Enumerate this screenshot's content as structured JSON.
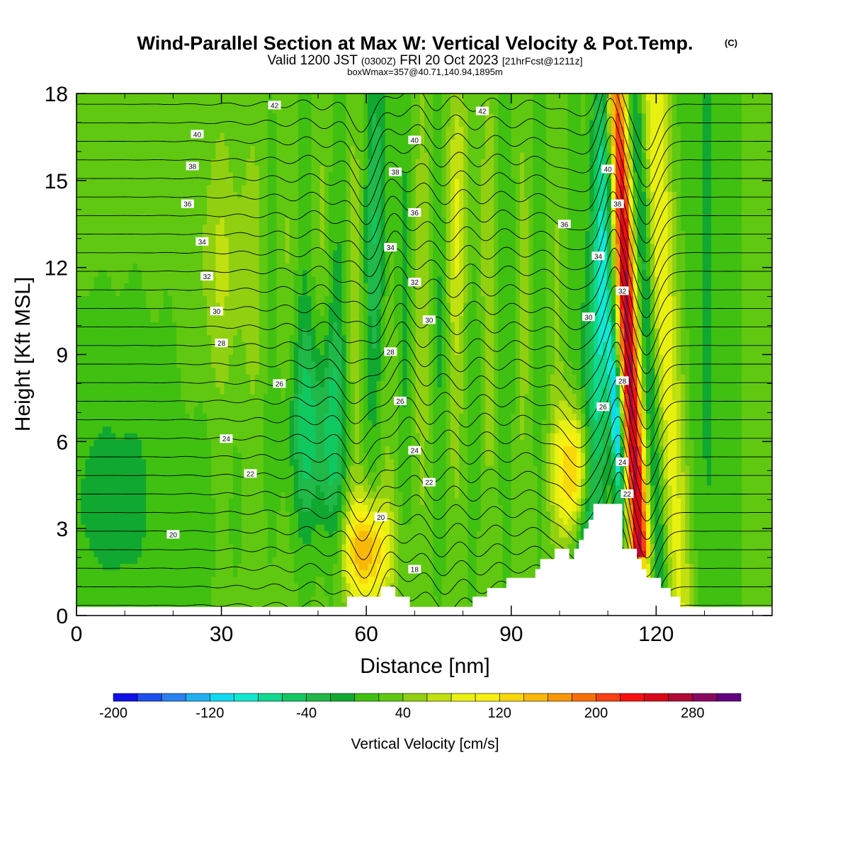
{
  "title": {
    "main": "Wind-Parallel Section at Max W: Vertical Velocity & Pot.Temp.",
    "copyright": "(C)",
    "valid_prefix": "Valid 1200 JST",
    "valid_utc": "(0300Z)",
    "valid_date": "FRI 20 Oct 2023",
    "forecast": "[21hrFcst@1211z]",
    "box": "boxWmax=357@40.71,140.94,1895m"
  },
  "chart_data": {
    "type": "heatmap",
    "xlabel": "Distance [nm]",
    "ylabel": "Height [Kft MSL]",
    "xlim": [
      0,
      144
    ],
    "ylim": [
      0,
      18
    ],
    "x_ticks": [
      "0",
      "30",
      "60",
      "90",
      "120"
    ],
    "y_ticks": [
      "0",
      "3",
      "6",
      "9",
      "12",
      "15",
      "18"
    ],
    "colorbar": {
      "label": "Vertical Velocity [cm/s]",
      "tick_labels": [
        "-200",
        "-120",
        "-40",
        "40",
        "120",
        "200",
        "280"
      ],
      "colors": [
        "#1010e8",
        "#1e50f0",
        "#2a80f0",
        "#20b0f0",
        "#10d8f0",
        "#10e8d0",
        "#10d890",
        "#10c860",
        "#20b848",
        "#10a830",
        "#40c010",
        "#60c810",
        "#90d010",
        "#c0e010",
        "#e8f010",
        "#f8f010",
        "#f8d808",
        "#f8b808",
        "#f89808",
        "#f87008",
        "#f84010",
        "#f81010",
        "#d80818",
        "#b00838",
        "#880860",
        "#600080"
      ],
      "boundaries": [
        -200,
        -180,
        -160,
        -140,
        -120,
        -100,
        -80,
        -60,
        -40,
        -20,
        0,
        20,
        40,
        60,
        80,
        100,
        120,
        140,
        160,
        180,
        200,
        220,
        240,
        260,
        280,
        300,
        320
      ]
    },
    "theta_contour_labels": [
      {
        "value": "42",
        "x": 41,
        "y": 17.6
      },
      {
        "value": "42",
        "x": 84,
        "y": 17.4
      },
      {
        "value": "40",
        "x": 25,
        "y": 16.6
      },
      {
        "value": "40",
        "x": 70,
        "y": 16.4
      },
      {
        "value": "40",
        "x": 110,
        "y": 15.4
      },
      {
        "value": "38",
        "x": 24,
        "y": 15.5
      },
      {
        "value": "38",
        "x": 66,
        "y": 15.3
      },
      {
        "value": "38",
        "x": 112,
        "y": 14.2
      },
      {
        "value": "36",
        "x": 23,
        "y": 14.2
      },
      {
        "value": "36",
        "x": 70,
        "y": 13.9
      },
      {
        "value": "36",
        "x": 101,
        "y": 13.5
      },
      {
        "value": "34",
        "x": 26,
        "y": 12.9
      },
      {
        "value": "34",
        "x": 65,
        "y": 12.7
      },
      {
        "value": "34",
        "x": 108,
        "y": 12.4
      },
      {
        "value": "32",
        "x": 27,
        "y": 11.7
      },
      {
        "value": "32",
        "x": 70,
        "y": 11.5
      },
      {
        "value": "32",
        "x": 113,
        "y": 11.2
      },
      {
        "value": "30",
        "x": 29,
        "y": 10.5
      },
      {
        "value": "30",
        "x": 73,
        "y": 10.2
      },
      {
        "value": "30",
        "x": 106,
        "y": 10.3
      },
      {
        "value": "28",
        "x": 30,
        "y": 9.4
      },
      {
        "value": "28",
        "x": 65,
        "y": 9.1
      },
      {
        "value": "28",
        "x": 113,
        "y": 8.1
      },
      {
        "value": "26",
        "x": 42,
        "y": 8.0
      },
      {
        "value": "26",
        "x": 67,
        "y": 7.4
      },
      {
        "value": "26",
        "x": 109,
        "y": 7.2
      },
      {
        "value": "24",
        "x": 31,
        "y": 6.1
      },
      {
        "value": "24",
        "x": 70,
        "y": 5.7
      },
      {
        "value": "24",
        "x": 113,
        "y": 5.3
      },
      {
        "value": "22",
        "x": 36,
        "y": 4.9
      },
      {
        "value": "22",
        "x": 73,
        "y": 4.6
      },
      {
        "value": "22",
        "x": 114,
        "y": 4.2
      },
      {
        "value": "20",
        "x": 20,
        "y": 2.8
      },
      {
        "value": "20",
        "x": 63,
        "y": 3.4
      },
      {
        "value": "18",
        "x": 70,
        "y": 1.6
      }
    ],
    "terrain": [
      [
        0,
        0.3
      ],
      [
        56,
        0.3
      ],
      [
        56,
        0.65
      ],
      [
        63,
        0.65
      ],
      [
        63,
        1.0
      ],
      [
        66,
        1.0
      ],
      [
        66,
        0.65
      ],
      [
        69,
        0.65
      ],
      [
        69,
        0.3
      ],
      [
        82,
        0.3
      ],
      [
        82,
        0.65
      ],
      [
        85,
        0.65
      ],
      [
        85,
        0.95
      ],
      [
        89,
        0.95
      ],
      [
        89,
        1.3
      ],
      [
        95,
        1.3
      ],
      [
        95,
        1.6
      ],
      [
        96,
        1.6
      ],
      [
        96,
        1.95
      ],
      [
        99,
        1.95
      ],
      [
        99,
        2.3
      ],
      [
        102,
        2.3
      ],
      [
        102,
        1.95
      ],
      [
        103,
        1.95
      ],
      [
        103,
        2.3
      ],
      [
        104,
        2.3
      ],
      [
        104,
        2.6
      ],
      [
        105,
        2.6
      ],
      [
        105,
        3.0
      ],
      [
        106,
        3.0
      ],
      [
        106,
        3.3
      ],
      [
        107,
        3.3
      ],
      [
        107,
        3.85
      ],
      [
        113,
        3.85
      ],
      [
        113,
        2.3
      ],
      [
        116,
        2.3
      ],
      [
        116,
        1.95
      ],
      [
        117,
        1.95
      ],
      [
        117,
        1.6
      ],
      [
        118,
        1.6
      ],
      [
        118,
        1.3
      ],
      [
        121,
        1.3
      ],
      [
        121,
        0.95
      ],
      [
        123,
        0.95
      ],
      [
        123,
        0.65
      ],
      [
        125,
        0.65
      ],
      [
        125,
        0.3
      ],
      [
        144,
        0.3
      ]
    ]
  }
}
